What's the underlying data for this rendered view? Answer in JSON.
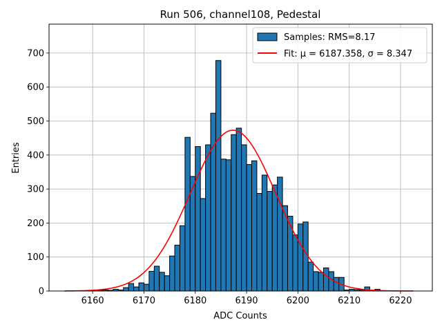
{
  "chart_data": {
    "type": "bar",
    "title": "Run 506, channel108, Pedestal",
    "xlabel": "ADC Counts",
    "ylabel": "Entries",
    "xlim": [
      6151.5,
      6226.2
    ],
    "ylim": [
      0,
      785
    ],
    "xticks": [
      6160,
      6170,
      6180,
      6190,
      6200,
      6210,
      6220
    ],
    "yticks": [
      0,
      100,
      200,
      300,
      400,
      500,
      600,
      700
    ],
    "grid": true,
    "legend_position": "top-right",
    "bin_width": 1,
    "series": [
      {
        "name": "Samples: RMS=8.17",
        "kind": "histogram",
        "color": "#1f77b4",
        "edgecolor": "#000000",
        "bins": [
          {
            "left": 6161,
            "count": 2
          },
          {
            "left": 6162,
            "count": 3
          },
          {
            "left": 6163,
            "count": 2
          },
          {
            "left": 6164,
            "count": 5
          },
          {
            "left": 6165,
            "count": 3
          },
          {
            "left": 6166,
            "count": 10
          },
          {
            "left": 6167,
            "count": 22
          },
          {
            "left": 6168,
            "count": 12
          },
          {
            "left": 6169,
            "count": 24
          },
          {
            "left": 6170,
            "count": 20
          },
          {
            "left": 6171,
            "count": 58
          },
          {
            "left": 6172,
            "count": 73
          },
          {
            "left": 6173,
            "count": 55
          },
          {
            "left": 6174,
            "count": 45
          },
          {
            "left": 6175,
            "count": 103
          },
          {
            "left": 6176,
            "count": 135
          },
          {
            "left": 6177,
            "count": 192
          },
          {
            "left": 6178,
            "count": 452
          },
          {
            "left": 6179,
            "count": 337
          },
          {
            "left": 6180,
            "count": 425
          },
          {
            "left": 6181,
            "count": 272
          },
          {
            "left": 6182,
            "count": 430
          },
          {
            "left": 6183,
            "count": 523
          },
          {
            "left": 6184,
            "count": 678
          },
          {
            "left": 6185,
            "count": 388
          },
          {
            "left": 6186,
            "count": 386
          },
          {
            "left": 6187,
            "count": 460
          },
          {
            "left": 6188,
            "count": 479
          },
          {
            "left": 6189,
            "count": 430
          },
          {
            "left": 6190,
            "count": 372
          },
          {
            "left": 6191,
            "count": 383
          },
          {
            "left": 6192,
            "count": 287
          },
          {
            "left": 6193,
            "count": 341
          },
          {
            "left": 6194,
            "count": 293
          },
          {
            "left": 6195,
            "count": 312
          },
          {
            "left": 6196,
            "count": 335
          },
          {
            "left": 6197,
            "count": 251
          },
          {
            "left": 6198,
            "count": 220
          },
          {
            "left": 6199,
            "count": 165
          },
          {
            "left": 6200,
            "count": 197
          },
          {
            "left": 6201,
            "count": 203
          },
          {
            "left": 6202,
            "count": 85
          },
          {
            "left": 6203,
            "count": 57
          },
          {
            "left": 6204,
            "count": 55
          },
          {
            "left": 6205,
            "count": 68
          },
          {
            "left": 6206,
            "count": 57
          },
          {
            "left": 6207,
            "count": 40
          },
          {
            "left": 6208,
            "count": 40
          },
          {
            "left": 6209,
            "count": 3
          },
          {
            "left": 6210,
            "count": 5
          },
          {
            "left": 6211,
            "count": 4
          },
          {
            "left": 6212,
            "count": 3
          },
          {
            "left": 6213,
            "count": 12
          },
          {
            "left": 6214,
            "count": 2
          },
          {
            "left": 6215,
            "count": 5
          }
        ]
      },
      {
        "name": "Fit: μ = 6187.358, σ = 8.347",
        "kind": "gaussian",
        "color": "#ff0000",
        "mu": 6187.358,
        "sigma": 8.347,
        "amplitude": 473,
        "x_range": [
          6154.5,
          6222.5
        ]
      }
    ],
    "legend": {
      "entries": [
        {
          "label": "Samples: RMS=8.17",
          "symbol": "patch",
          "color": "#1f77b4"
        },
        {
          "label": "Fit: μ = 6187.358, σ = 8.347",
          "symbol": "line",
          "color": "#ff0000"
        }
      ]
    }
  }
}
